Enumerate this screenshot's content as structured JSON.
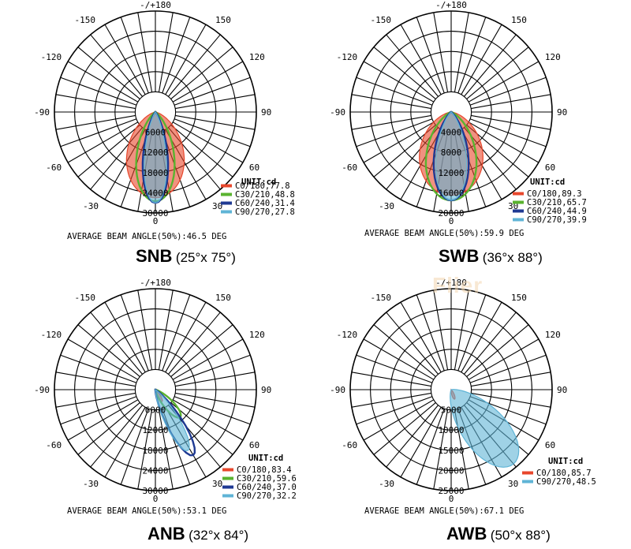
{
  "watermark": "Flier",
  "colors": {
    "c0": "#e8472c",
    "c30": "#5ab32f",
    "c60": "#1f3a93",
    "c90": "#5fb4d6"
  },
  "chart_data": [
    {
      "type": "polar",
      "name": "SNB",
      "subtitle": "(25°x 75°)",
      "unit": "UNIT:cd",
      "beam_angle": "AVERAGE BEAM ANGLE(50%):46.5 DEG",
      "angle_labels": {
        "top": "-/+180",
        "ul": "-150",
        "ur": "150",
        "ml1": "-120",
        "mr1": "120",
        "l": "-90",
        "r": "90",
        "ll1": "-60",
        "lr1": "60",
        "ll2": "-30",
        "lr2": "30",
        "bottom": "0"
      },
      "radial_ticks": [
        "6000",
        "12000",
        "18000",
        "24000",
        "30000"
      ],
      "rmax": 30000,
      "legend": [
        "C0/180,77.8",
        "C30/210,48.8",
        "C60/240,31.4",
        "C90/270,27.8"
      ],
      "series": [
        {
          "key": "c0",
          "halfwidth_deg": 38.9,
          "peak": 25500,
          "fill": true
        },
        {
          "key": "c30",
          "halfwidth_deg": 24.4,
          "peak": 26500,
          "fill": false
        },
        {
          "key": "c60",
          "halfwidth_deg": 15.7,
          "peak": 27000,
          "fill": false
        },
        {
          "key": "c90",
          "halfwidth_deg": 13.9,
          "peak": 27000,
          "fill": true
        }
      ]
    },
    {
      "type": "polar",
      "name": "SWB",
      "subtitle": "(36°x 88°)",
      "unit": "UNIT:cd",
      "beam_angle": "AVERAGE BEAM ANGLE(50%):59.9 DEG",
      "angle_labels": {
        "top": "-/+180",
        "ul": "-150",
        "ur": "150",
        "ml1": "-120",
        "mr1": "120",
        "l": "-90",
        "r": "90",
        "ll1": "-60",
        "lr1": "60",
        "ll2": "-30",
        "lr2": "30",
        "bottom": "0"
      },
      "radial_ticks": [
        "4000",
        "8000",
        "12000",
        "16000",
        "20000"
      ],
      "rmax": 20000,
      "legend": [
        "C0/180,89.3",
        "C30/210,65.7",
        "C60/240,44.9",
        "C90/270,39.9"
      ],
      "series": [
        {
          "key": "c0",
          "halfwidth_deg": 44.6,
          "peak": 16500,
          "fill": true
        },
        {
          "key": "c30",
          "halfwidth_deg": 32.8,
          "peak": 17500,
          "fill": false
        },
        {
          "key": "c60",
          "halfwidth_deg": 22.4,
          "peak": 17500,
          "fill": false
        },
        {
          "key": "c90",
          "halfwidth_deg": 19.9,
          "peak": 17500,
          "fill": true
        }
      ]
    },
    {
      "type": "polar",
      "name": "ANB",
      "subtitle": "(32°x 84°)",
      "unit": "UNIT:cd",
      "beam_angle": "AVERAGE BEAM ANGLE(50%):53.1 DEG",
      "angle_labels": {
        "top": "-/+180",
        "ul": "-150",
        "ur": "150",
        "ml1": "-120",
        "mr1": "120",
        "l": "-90",
        "r": "90",
        "ll1": "-60",
        "lr1": "60",
        "ll2": "-30",
        "lr2": "30",
        "bottom": "0"
      },
      "radial_ticks": [
        "6000",
        "12000",
        "18000",
        "24000",
        "30000"
      ],
      "rmax": 30000,
      "legend": [
        "C0/180,83.4",
        "C30/210,59.6",
        "C60/240,37.0",
        "C90/270,32.2"
      ],
      "series": [
        {
          "key": "c0",
          "halfwidth_deg": 12,
          "peak": 4000,
          "tilt_deg": -30,
          "fill": true
        },
        {
          "key": "c30",
          "halfwidth_deg": 15,
          "peak": 11000,
          "tilt_deg": -42,
          "fill": false
        },
        {
          "key": "c60",
          "halfwidth_deg": 12,
          "peak": 22500,
          "tilt_deg": -30,
          "fill": false
        },
        {
          "key": "c90",
          "halfwidth_deg": 12,
          "peak": 20500,
          "tilt_deg": -28,
          "fill": true
        }
      ]
    },
    {
      "type": "polar",
      "name": "AWB",
      "subtitle": "(50°x 88°)",
      "unit": "UNIT:cd",
      "beam_angle": "AVERAGE BEAM ANGLE(50%):67.1 DEG",
      "angle_labels": {
        "top": "-/+180",
        "ul": "-150",
        "ur": "150",
        "ml1": "-120",
        "mr1": "120",
        "l": "-90",
        "r": "90",
        "ll1": "-60",
        "lr1": "60",
        "ll2": "-30",
        "lr2": "30",
        "bottom": "0"
      },
      "radial_ticks": [
        "5000",
        "10000",
        "15000",
        "20000",
        "25000"
      ],
      "rmax": 25000,
      "legend": [
        "C0/180,85.7",
        "C90/270,48.5"
      ],
      "series": [
        {
          "key": "c0",
          "halfwidth_deg": 14,
          "peak": 2500,
          "tilt_deg": -20,
          "fill": true
        },
        {
          "key": "c90",
          "halfwidth_deg": 26,
          "peak": 24000,
          "tilt_deg": -40,
          "fill": true
        }
      ]
    }
  ]
}
